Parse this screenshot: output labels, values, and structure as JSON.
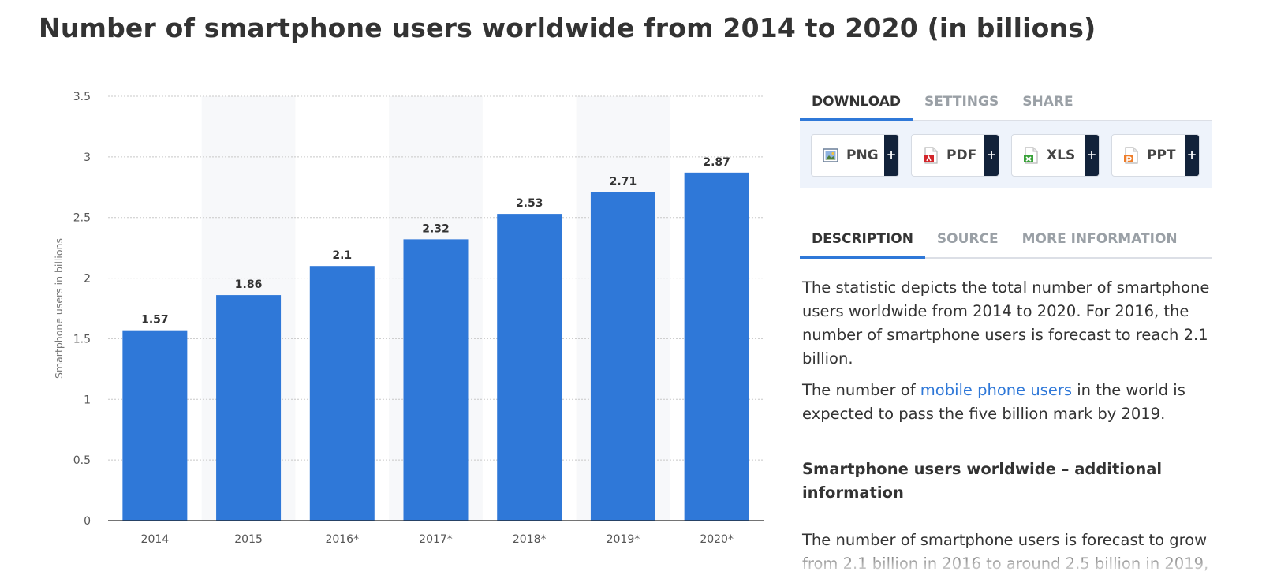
{
  "page": {
    "title": "Number of smartphone users worldwide from 2014 to 2020 (in billions)"
  },
  "tabs": {
    "top": [
      {
        "label": "DOWNLOAD",
        "active": true
      },
      {
        "label": "SETTINGS",
        "active": false
      },
      {
        "label": "SHARE",
        "active": false
      }
    ],
    "bottom": [
      {
        "label": "DESCRIPTION",
        "active": true
      },
      {
        "label": "SOURCE",
        "active": false
      },
      {
        "label": "MORE INFORMATION",
        "active": false
      }
    ]
  },
  "downloads": [
    {
      "label": "PNG",
      "icon": "png-file-icon",
      "plus": "+"
    },
    {
      "label": "PDF",
      "icon": "pdf-file-icon",
      "plus": "+"
    },
    {
      "label": "XLS",
      "icon": "xls-file-icon",
      "plus": "+"
    },
    {
      "label": "PPT",
      "icon": "ppt-file-icon",
      "plus": "+"
    }
  ],
  "description": {
    "p1": "The statistic depicts the total number of smartphone users worldwide from 2014 to 2020. For 2016, the number of smartphone users is forecast to reach 2.1 billion.",
    "p2_before": "The number of ",
    "p2_link": "mobile phone users",
    "p2_after": " in the world is expected to pass the five billion mark by 2019.",
    "heading": "Smartphone users worldwide – additional information",
    "p3": "The number of smartphone users is forecast to grow from 2.1 billion in 2016 to around 2.5 billion in 2019,"
  },
  "colors": {
    "bar": "#2f78d8",
    "accent": "#2f78d8",
    "band": "#f7f8fa",
    "grid": "#c8c8c8"
  },
  "chart_data": {
    "type": "bar",
    "categories": [
      "2014",
      "2015",
      "2016*",
      "2017*",
      "2018*",
      "2019*",
      "2020*"
    ],
    "values": [
      1.57,
      1.86,
      2.1,
      2.32,
      2.53,
      2.71,
      2.87
    ],
    "value_labels": [
      "1.57",
      "1.86",
      "2.1",
      "2.32",
      "2.53",
      "2.71",
      "2.87"
    ],
    "title": "",
    "xlabel": "",
    "ylabel": "Smartphone users in billions",
    "ylim": [
      0,
      3.5
    ],
    "yticks": [
      0,
      0.5,
      1,
      1.5,
      2,
      2.5,
      3,
      3.5
    ],
    "ytick_labels": [
      "0",
      "0.5",
      "1",
      "1.5",
      "2",
      "2.5",
      "3",
      "3.5"
    ],
    "grid": true,
    "legend": "none"
  }
}
